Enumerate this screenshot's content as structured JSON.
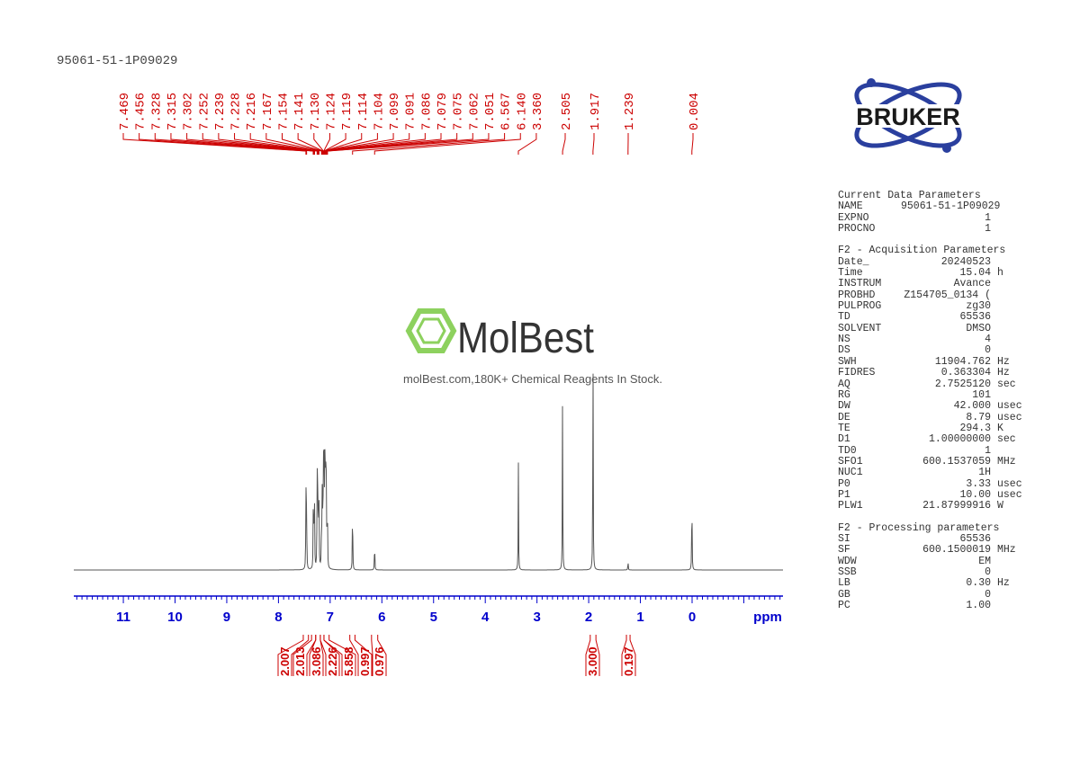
{
  "title": "95061-51-1P09029",
  "brand": {
    "bruker": "BRUKER",
    "watermark": "MolBest",
    "watermark_sub": "molBest.com,180K+ Chemical Reagents In Stock."
  },
  "colors": {
    "spectrum": "#555555",
    "axis": "#0000cc",
    "labels": "#cc0000",
    "logo": "#2a3f9e"
  },
  "chart_data": {
    "type": "line",
    "xlabel": "ppm",
    "xlim": [
      11.96,
      -1.76
    ],
    "x_reversed": true,
    "xticks": [
      11,
      10,
      9,
      8,
      7,
      6,
      5,
      4,
      3,
      2,
      1,
      0
    ],
    "peak_labels": [
      "7.469",
      "7.456",
      "7.328",
      "7.315",
      "7.302",
      "7.252",
      "7.239",
      "7.228",
      "7.216",
      "7.167",
      "7.154",
      "7.141",
      "7.130",
      "7.124",
      "7.119",
      "7.114",
      "7.104",
      "7.099",
      "7.091",
      "7.086",
      "7.079",
      "7.075",
      "7.062",
      "7.051",
      "6.567",
      "6.140",
      "3.360",
      "2.505",
      "1.917",
      "1.239",
      "0.004"
    ],
    "peaks": [
      [
        7.469,
        0.33
      ],
      [
        7.456,
        0.3
      ],
      [
        7.328,
        0.2
      ],
      [
        7.315,
        0.28
      ],
      [
        7.302,
        0.22
      ],
      [
        7.252,
        0.44
      ],
      [
        7.239,
        0.3
      ],
      [
        7.228,
        0.25
      ],
      [
        7.216,
        0.24
      ],
      [
        7.167,
        0.2
      ],
      [
        7.154,
        0.26
      ],
      [
        7.141,
        0.3
      ],
      [
        7.13,
        0.3
      ],
      [
        7.124,
        0.22
      ],
      [
        7.119,
        0.2
      ],
      [
        7.114,
        0.22
      ],
      [
        7.104,
        0.24
      ],
      [
        7.099,
        0.26
      ],
      [
        7.091,
        0.22
      ],
      [
        7.086,
        0.24
      ],
      [
        7.079,
        0.2
      ],
      [
        7.075,
        0.18
      ],
      [
        7.062,
        0.18
      ],
      [
        7.051,
        0.16
      ],
      [
        6.567,
        0.31
      ],
      [
        6.14,
        0.13
      ],
      [
        3.36,
        0.42
      ],
      [
        2.505,
        0.72
      ],
      [
        1.917,
        1.0
      ],
      [
        1.239,
        0.04
      ],
      [
        0.004,
        0.36
      ]
    ],
    "integrals": [
      {
        "value": "2.007",
        "from": 7.52,
        "to": 7.42
      },
      {
        "value": "2.013",
        "from": 7.36,
        "to": 7.28
      },
      {
        "value": "3.086",
        "from": 7.28,
        "to": 7.19
      },
      {
        "value": "2.226",
        "from": 7.19,
        "to": 7.12
      },
      {
        "value": "5.858",
        "from": 7.12,
        "to": 7.02
      },
      {
        "value": "0.997",
        "from": 6.62,
        "to": 6.52
      },
      {
        "value": "0.976",
        "from": 6.2,
        "to": 6.08
      },
      {
        "value": "3.000",
        "from": 1.97,
        "to": 1.86
      },
      {
        "value": "0.197",
        "from": 1.27,
        "to": 1.2
      }
    ]
  },
  "parameters": [
    {
      "header": "Current Data Parameters",
      "rows": [
        [
          "NAME",
          "95061-51-1P09029",
          ""
        ],
        [
          "EXPNO",
          "1",
          ""
        ],
        [
          "PROCNO",
          "1",
          ""
        ]
      ]
    },
    {
      "header": "F2 - Acquisition Parameters",
      "rows": [
        [
          "Date_",
          "20240523",
          ""
        ],
        [
          "Time",
          "15.04",
          "h"
        ],
        [
          "INSTRUM",
          "Avance",
          ""
        ],
        [
          "PROBHD",
          "Z154705_0134 (",
          ""
        ],
        [
          "PULPROG",
          "zg30",
          ""
        ],
        [
          "TD",
          "65536",
          ""
        ],
        [
          "SOLVENT",
          "DMSO",
          ""
        ],
        [
          "NS",
          "4",
          ""
        ],
        [
          "DS",
          "0",
          ""
        ],
        [
          "SWH",
          "11904.762",
          "Hz"
        ],
        [
          "FIDRES",
          "0.363304",
          "Hz"
        ],
        [
          "AQ",
          "2.7525120",
          "sec"
        ],
        [
          "RG",
          "101",
          ""
        ],
        [
          "DW",
          "42.000",
          "usec"
        ],
        [
          "DE",
          "8.79",
          "usec"
        ],
        [
          "TE",
          "294.3",
          "K"
        ],
        [
          "D1",
          "1.00000000",
          "sec"
        ],
        [
          "TD0",
          "1",
          ""
        ],
        [
          "SFO1",
          "600.1537059",
          "MHz"
        ],
        [
          "NUC1",
          "1H",
          ""
        ],
        [
          "P0",
          "3.33",
          "usec"
        ],
        [
          "P1",
          "10.00",
          "usec"
        ],
        [
          "PLW1",
          "21.87999916",
          "W"
        ]
      ]
    },
    {
      "header": "F2 - Processing parameters",
      "rows": [
        [
          "SI",
          "65536",
          ""
        ],
        [
          "SF",
          "600.1500019",
          "MHz"
        ],
        [
          "WDW",
          "EM",
          ""
        ],
        [
          "SSB",
          "0",
          ""
        ],
        [
          "LB",
          "0.30",
          "Hz"
        ],
        [
          "GB",
          "0",
          ""
        ],
        [
          "PC",
          "1.00",
          ""
        ]
      ]
    }
  ]
}
